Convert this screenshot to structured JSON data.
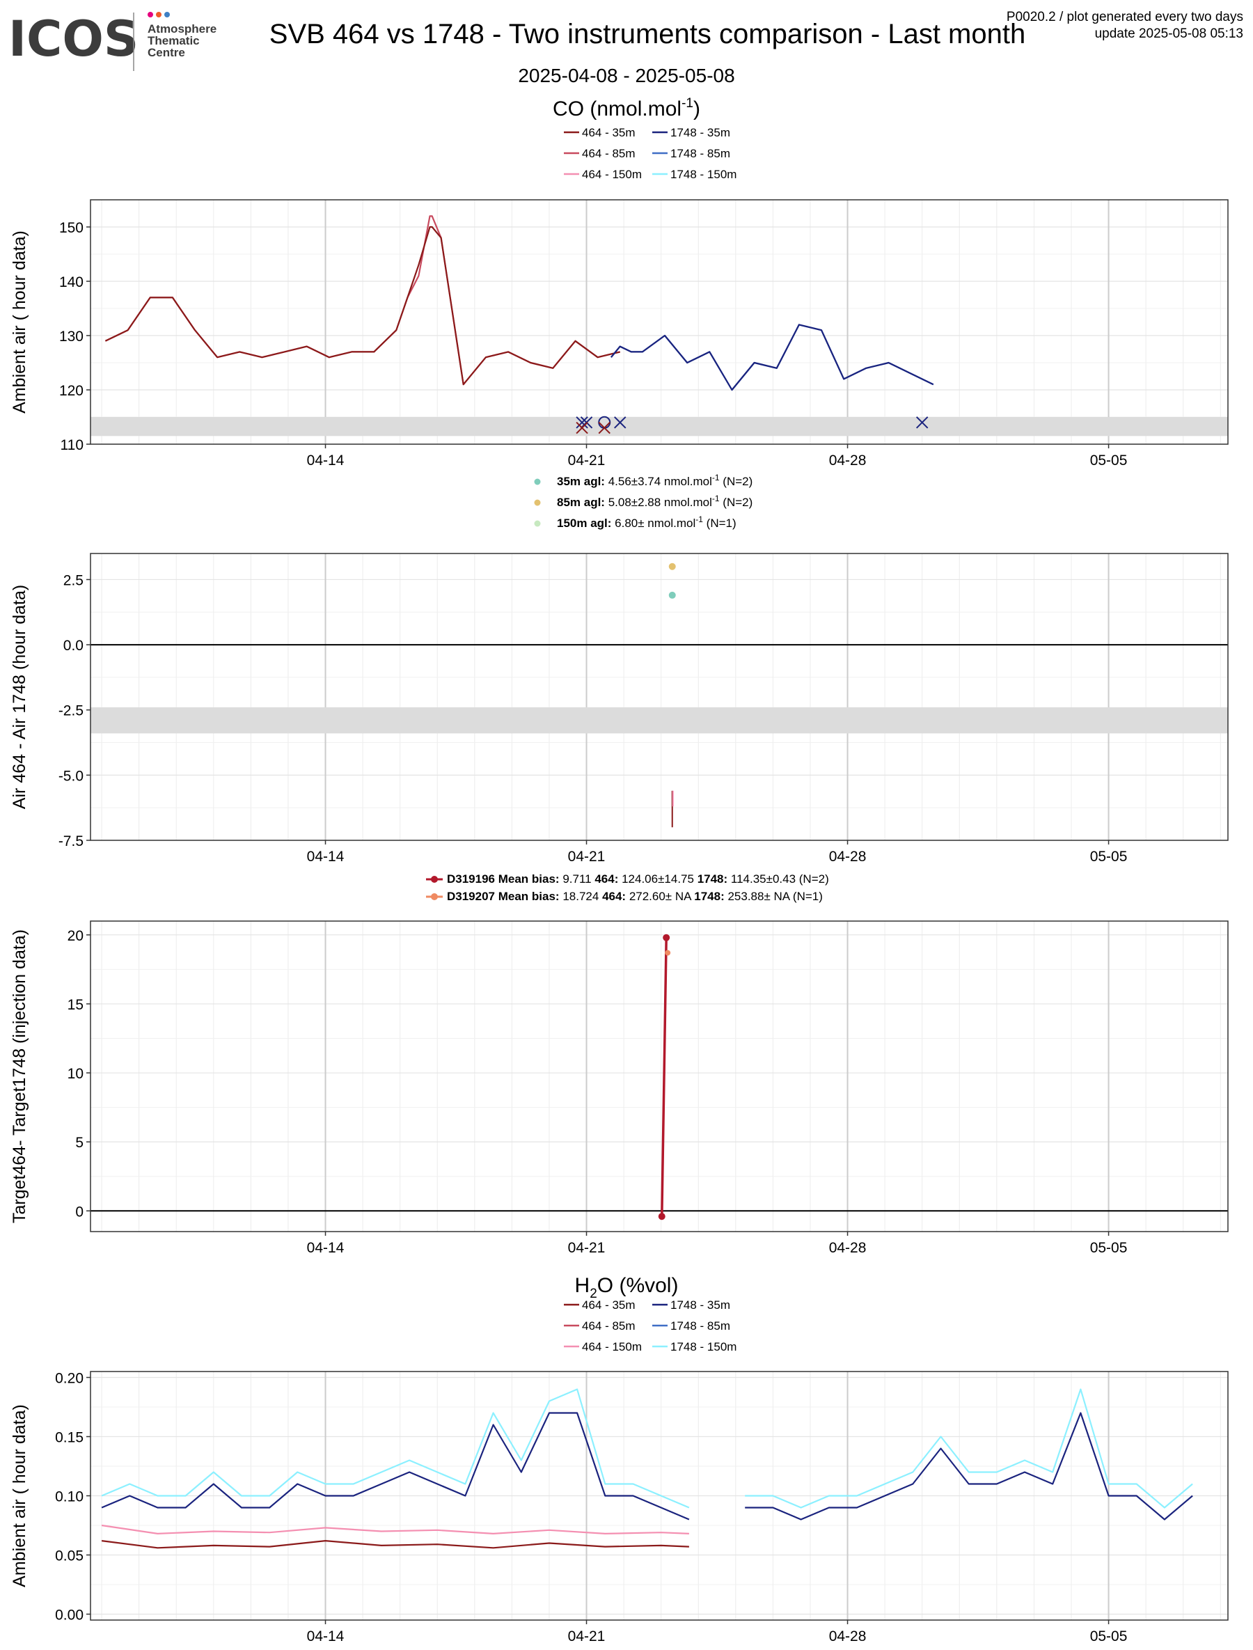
{
  "header": {
    "logo_text": "ICOS",
    "logo_sub": [
      "Atmosphere",
      "Thematic",
      "Centre"
    ],
    "logo_dot_colors": [
      "#e6007e",
      "#f05a28",
      "#3f80c4"
    ],
    "title": "SVB 464 vs 1748 - Two instruments comparison - Last month",
    "date_range": "2025-04-08 - 2025-05-08",
    "meta_line1": "P0020.2 / plot generated every two days",
    "meta_line2": "update  2025-05-08 05:13"
  },
  "colors": {
    "i464_35": "#8b1a1a",
    "i464_85": "#c84a5e",
    "i464_150": "#f48fb1",
    "i1748_35": "#1a237e",
    "i1748_85": "#3f6ec6",
    "i1748_150": "#8cf0ff",
    "diff_35": "#7fcdbb",
    "diff_85": "#e3c16f",
    "diff_150": "#c7e9c0",
    "target1": "#b2182b",
    "target2": "#ef8a62",
    "band": "#dcdcdc"
  },
  "chart_data": [
    {
      "type": "line",
      "title": "CO (nmol.mol",
      "title_sup": "-1",
      "title_end": ")",
      "ylabel": "Ambient air ( hour data)",
      "ylim": [
        110,
        155
      ],
      "yticks": [
        "110",
        "120",
        "130",
        "140",
        "150"
      ],
      "xticks": [
        "04-14",
        "04-21",
        "04-28",
        "05-05"
      ],
      "legend": [
        "464 - 35m",
        "1748 - 35m",
        "464 - 85m",
        "1748 - 85m",
        "464 - 150m",
        "1748 - 150m"
      ],
      "series": [
        {
          "name": "464 - 35m",
          "instrument": "464",
          "x": [
            2,
            3,
            4,
            5,
            6,
            7,
            8,
            9,
            10,
            11,
            12,
            13,
            14,
            15,
            15.5,
            16,
            16.5,
            16.6,
            17,
            18,
            19,
            20,
            21,
            22,
            23,
            24,
            25
          ],
          "y": [
            129,
            131,
            137,
            137,
            131,
            126,
            127,
            126,
            127,
            128,
            126,
            127,
            127,
            131,
            137,
            141,
            152,
            152,
            148,
            121,
            126,
            127,
            125,
            124,
            129,
            126,
            127
          ]
        },
        {
          "name": "464 - 85m",
          "instrument": "464",
          "x": [
            2,
            3,
            4,
            5,
            6,
            7,
            8,
            9,
            10,
            11,
            12,
            13,
            14,
            15,
            15.5,
            16,
            16.5,
            16.6,
            17,
            18,
            19,
            20,
            21,
            22,
            23,
            24,
            25
          ],
          "y": [
            129,
            131,
            137,
            137,
            131,
            126,
            127,
            126,
            127,
            128,
            126,
            127,
            127,
            131,
            137,
            143,
            150,
            150,
            148,
            121,
            126,
            127,
            125,
            124,
            129,
            126,
            127
          ]
        },
        {
          "name": "1748 - 35m",
          "instrument": "1748",
          "x": [
            24.6,
            25,
            25.5,
            26,
            27,
            28,
            29,
            30,
            31,
            32,
            33,
            34,
            35,
            36,
            37,
            38,
            39
          ],
          "y": [
            126,
            128,
            127,
            127,
            130,
            125,
            127,
            120,
            125,
            124,
            132,
            131,
            122,
            124,
            125,
            123,
            121
          ]
        },
        {
          "name": "1748 - 85m",
          "instrument": "1748",
          "x": [
            24.6,
            25,
            25.5,
            26,
            27,
            28,
            29,
            30,
            31,
            32,
            33,
            34,
            35,
            36,
            37,
            38,
            39
          ],
          "y": [
            126,
            128,
            127,
            127,
            130,
            125,
            127,
            120,
            125,
            124,
            132,
            131,
            122,
            124,
            125,
            123,
            121
          ]
        }
      ],
      "markers": [
        {
          "x": 21.8,
          "y": 114,
          "symbol": "x",
          "color": "#1a237e"
        },
        {
          "x": 22.0,
          "y": 114,
          "symbol": "x",
          "color": "#1a237e"
        },
        {
          "x": 21.8,
          "y": 113,
          "symbol": "x",
          "color": "#8b1a1a"
        },
        {
          "x": 22.8,
          "y": 114,
          "symbol": "o",
          "color": "#1a237e"
        },
        {
          "x": 22.8,
          "y": 113,
          "symbol": "x",
          "color": "#8b1a1a"
        },
        {
          "x": 23.5,
          "y": 114,
          "symbol": "x",
          "color": "#1a237e"
        },
        {
          "x": 37.0,
          "y": 114,
          "symbol": "x",
          "color": "#1a237e"
        }
      ],
      "band": [
        111.5,
        115
      ]
    },
    {
      "type": "scatter",
      "ylabel": "Air 464 - Air 1748 (hour data)",
      "ylim": [
        -7.5,
        3.5
      ],
      "yticks": [
        "-7.5",
        "-5.0",
        "-2.5",
        "0.0",
        "2.5"
      ],
      "xticks": [
        "04-14",
        "04-21",
        "04-28",
        "05-05"
      ],
      "legend": [
        {
          "label": "35m agl:",
          "text": "4.56±3.74 nmol.mol",
          "sup": "-1",
          "n": "(N=2)"
        },
        {
          "label": "85m agl:",
          "text": "5.08±2.88 nmol.mol",
          "sup": "-1",
          "n": "(N=2)"
        },
        {
          "label": "150m agl:",
          "text": "6.80± nmol.mol",
          "sup": "-1",
          "n": "(N=1)"
        }
      ],
      "points": [
        {
          "x": 23.0,
          "y": 3.0,
          "series": "85m"
        },
        {
          "x": 23.0,
          "y": 1.9,
          "series": "35m"
        }
      ],
      "band": [
        -3.4,
        -2.4
      ]
    },
    {
      "type": "line",
      "ylabel": "Target464- Target1748 (injection data)",
      "ylim": [
        -1.5,
        21
      ],
      "yticks": [
        "0",
        "5",
        "10",
        "15",
        "20"
      ],
      "xticks": [
        "04-14",
        "04-21",
        "04-28",
        "05-05"
      ],
      "legend": [
        {
          "id": "D319196",
          "mean_bias": "Mean bias:",
          "bias": "9.711",
          "i464": "464:",
          "v464": "124.06±14.75",
          "i1748": "1748:",
          "v1748": "114.35±0.43 (N=2)"
        },
        {
          "id": "D319207",
          "mean_bias": "Mean bias:",
          "bias": "18.724",
          "i464": "464:",
          "v464": "272.60± NA",
          "i1748": "1748:",
          "v1748": "253.88± NA (N=1)"
        }
      ],
      "series": [
        {
          "name": "D319196",
          "x": [
            22.7,
            22.9
          ],
          "y": [
            -0.4,
            19.8
          ]
        },
        {
          "name": "D319207",
          "x": [
            22.9
          ],
          "y": [
            18.7
          ]
        }
      ]
    },
    {
      "type": "line",
      "title": "H",
      "title_sub": "2",
      "title_end": "O (%vol)",
      "ylabel": "Ambient air ( hour data)",
      "ylim": [
        -0.005,
        0.205
      ],
      "yticks": [
        "0.00",
        "0.05",
        "0.10",
        "0.15",
        "0.20"
      ],
      "xticks": [
        "04-14",
        "04-21",
        "04-28",
        "05-05"
      ],
      "legend": [
        "464 - 35m",
        "1748 - 35m",
        "464 - 85m",
        "1748 - 85m",
        "464 - 150m",
        "1748 - 150m"
      ],
      "series": [
        {
          "name": "1748 - 150m",
          "x": [
            0,
            1,
            2,
            3,
            4,
            5,
            6,
            7,
            8,
            9,
            10,
            11,
            12,
            13,
            14,
            15,
            16,
            17,
            18,
            19,
            20,
            21,
            22,
            23,
            24,
            25,
            26,
            27,
            28,
            29,
            30,
            31,
            32,
            33,
            34,
            35,
            36,
            37,
            38,
            39
          ],
          "y": [
            0.1,
            0.11,
            0.1,
            0.1,
            0.12,
            0.1,
            0.1,
            0.12,
            0.11,
            0.11,
            0.12,
            0.13,
            0.12,
            0.11,
            0.17,
            0.13,
            0.18,
            0.19,
            0.11,
            0.11,
            0.1,
            0.09,
            0.09,
            0.1,
            0.1,
            0.09,
            0.1,
            0.1,
            0.11,
            0.12,
            0.15,
            0.12,
            0.12,
            0.13,
            0.12,
            0.19,
            0.11,
            0.11,
            0.09,
            0.11
          ]
        },
        {
          "name": "1748 - 35m",
          "x": [
            0,
            1,
            2,
            3,
            4,
            5,
            6,
            7,
            8,
            9,
            10,
            11,
            12,
            13,
            14,
            15,
            16,
            17,
            18,
            19,
            20,
            21,
            22,
            23,
            24,
            25,
            26,
            27,
            28,
            29,
            30,
            31,
            32,
            33,
            34,
            35,
            36,
            37,
            38,
            39
          ],
          "y": [
            0.09,
            0.1,
            0.09,
            0.09,
            0.11,
            0.09,
            0.09,
            0.11,
            0.1,
            0.1,
            0.11,
            0.12,
            0.11,
            0.1,
            0.16,
            0.12,
            0.17,
            0.17,
            0.1,
            0.1,
            0.09,
            0.08,
            0.08,
            0.09,
            0.09,
            0.08,
            0.09,
            0.09,
            0.1,
            0.11,
            0.14,
            0.11,
            0.11,
            0.12,
            0.11,
            0.17,
            0.1,
            0.1,
            0.08,
            0.1
          ]
        },
        {
          "name": "464 - 150m",
          "x": [
            0,
            2,
            4,
            6,
            8,
            10,
            12,
            14,
            16,
            18,
            20,
            21
          ],
          "y": [
            0.075,
            0.068,
            0.07,
            0.069,
            0.073,
            0.07,
            0.071,
            0.068,
            0.071,
            0.068,
            0.069,
            0.068
          ]
        },
        {
          "name": "464 - 35m",
          "x": [
            0,
            2,
            4,
            6,
            8,
            10,
            12,
            14,
            16,
            18,
            20,
            21
          ],
          "y": [
            0.062,
            0.056,
            0.058,
            0.057,
            0.062,
            0.058,
            0.059,
            0.056,
            0.06,
            0.057,
            0.058,
            0.057
          ]
        }
      ]
    }
  ]
}
